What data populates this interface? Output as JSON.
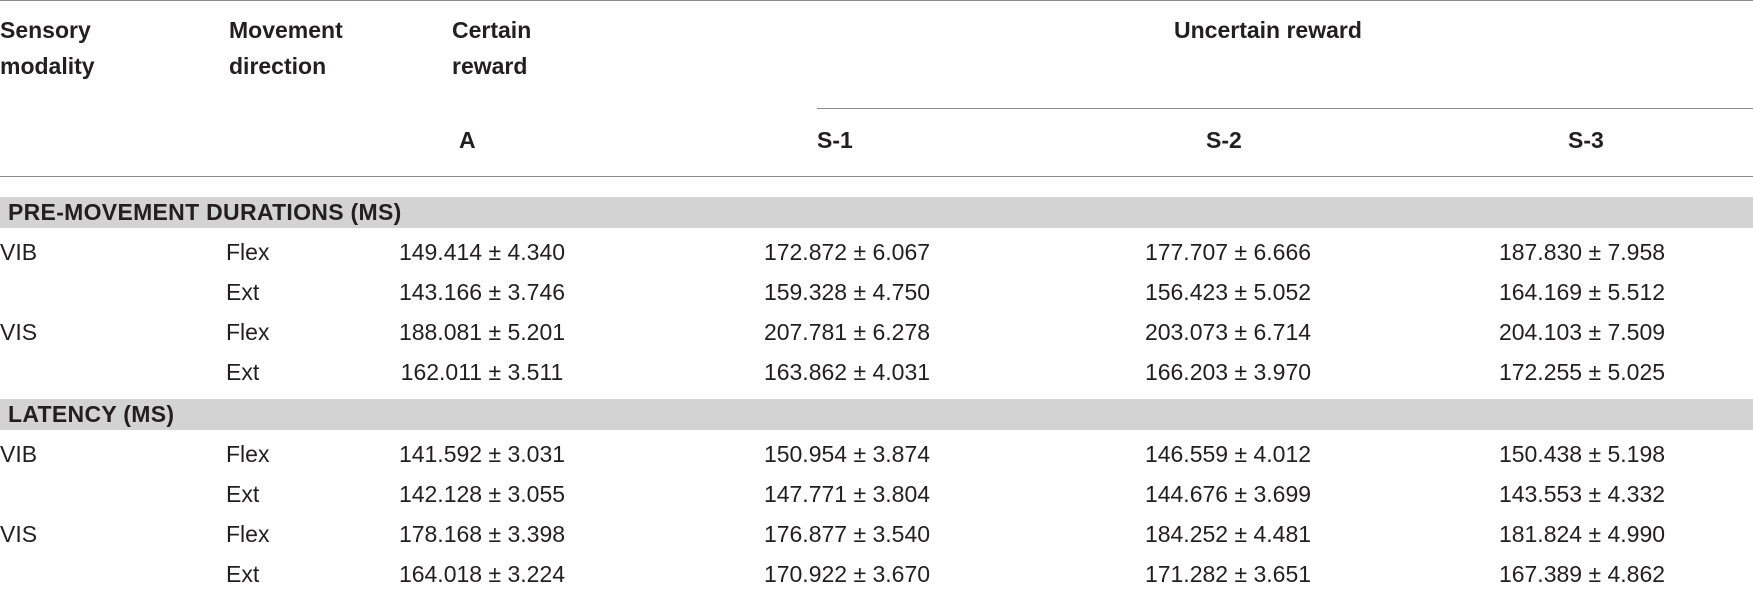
{
  "table": {
    "headers": {
      "sensory_modality": [
        "Sensory",
        "modality"
      ],
      "movement_direction": [
        "Movement",
        "direction"
      ],
      "certain_reward": [
        "Certain",
        "reward"
      ],
      "uncertain_reward": "Uncertain reward",
      "col_a": "A",
      "col_s1": "S-1",
      "col_s2": "S-2",
      "col_s3": "S-3"
    },
    "sections": [
      {
        "title": "PRE-MOVEMENT DURATIONS (MS)",
        "rows": [
          {
            "modality": "VIB",
            "direction": "Flex",
            "a": "149.414 ± 4.340",
            "s1": "172.872 ± 6.067",
            "s2": "177.707 ± 6.666",
            "s3": "187.830 ± 7.958"
          },
          {
            "modality": "",
            "direction": "Ext",
            "a": "143.166 ± 3.746",
            "s1": "159.328 ± 4.750",
            "s2": "156.423 ± 5.052",
            "s3": "164.169 ± 5.512"
          },
          {
            "modality": "VIS",
            "direction": "Flex",
            "a": "188.081 ± 5.201",
            "s1": "207.781 ± 6.278",
            "s2": "203.073 ± 6.714",
            "s3": "204.103 ± 7.509"
          },
          {
            "modality": "",
            "direction": "Ext",
            "a": "162.011 ± 3.511",
            "s1": "163.862 ± 4.031",
            "s2": "166.203 ± 3.970",
            "s3": "172.255 ± 5.025"
          }
        ]
      },
      {
        "title": "LATENCY (MS)",
        "rows": [
          {
            "modality": "VIB",
            "direction": "Flex",
            "a": "141.592 ± 3.031",
            "s1": "150.954 ± 3.874",
            "s2": "146.559 ± 4.012",
            "s3": "150.438 ± 5.198"
          },
          {
            "modality": "",
            "direction": "Ext",
            "a": "142.128 ± 3.055",
            "s1": "147.771 ± 3.804",
            "s2": "144.676 ± 3.699",
            "s3": "143.553 ± 4.332"
          },
          {
            "modality": "VIS",
            "direction": "Flex",
            "a": "178.168 ± 3.398",
            "s1": "176.877 ± 3.540",
            "s2": "184.252 ± 4.481",
            "s3": "181.824 ± 4.990"
          },
          {
            "modality": "",
            "direction": "Ext",
            "a": "164.018 ± 3.224",
            "s1": "170.922 ± 3.670",
            "s2": "171.282 ± 3.651",
            "s3": "167.389 ± 4.862"
          }
        ]
      }
    ]
  }
}
